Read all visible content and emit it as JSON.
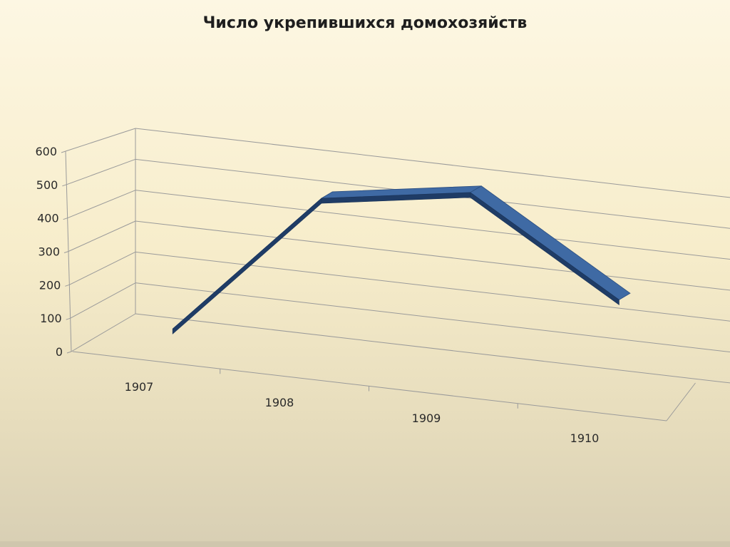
{
  "chart_data": {
    "type": "line",
    "title": "Число укрепившихся домохозяйств",
    "categories": [
      "1907",
      "1908",
      "1909",
      "1910"
    ],
    "series": [
      {
        "values": [
          48,
          508,
          580,
          300
        ]
      }
    ],
    "y_ticks": [
      "0",
      "100",
      "200",
      "300",
      "400",
      "500",
      "600"
    ],
    "ylim": [
      0,
      600
    ],
    "grid": true,
    "three_d": true,
    "series_color": "#3f6aa4"
  }
}
